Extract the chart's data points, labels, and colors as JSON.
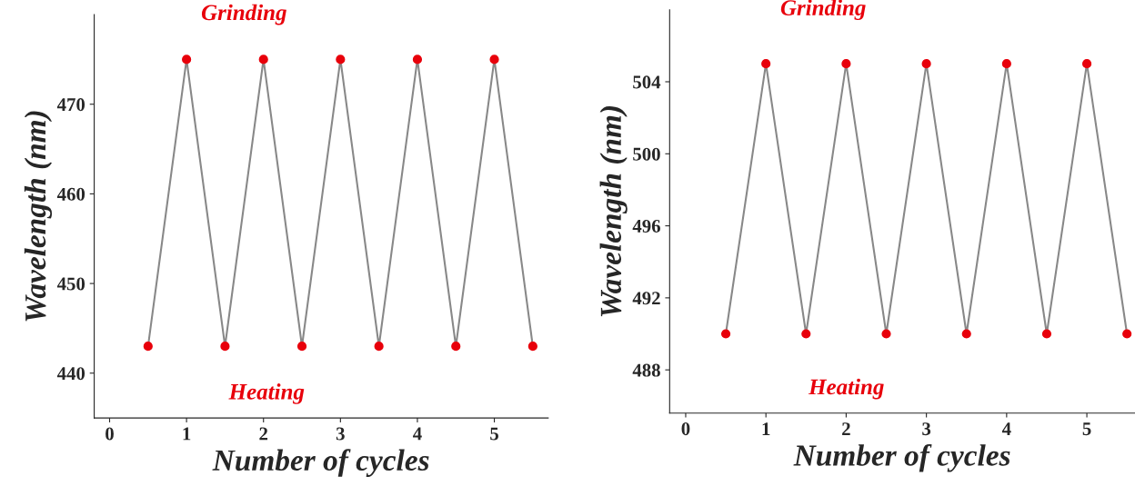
{
  "chart_data": [
    {
      "type": "line",
      "xlabel": "Number of cycles",
      "ylabel": "Wavelength (nm)",
      "x": [
        0.5,
        1,
        1.5,
        2,
        2.5,
        3,
        3.5,
        4,
        4.5,
        5,
        5.5
      ],
      "series": [
        {
          "color": "#e8000b",
          "values": [
            443,
            475,
            443,
            475,
            443,
            475,
            443,
            475,
            443,
            475,
            443
          ]
        }
      ],
      "marker": "circle",
      "xlim": [
        -0.2,
        5.7
      ],
      "xticks": [
        0,
        1,
        2,
        3,
        4,
        5
      ],
      "ylim": [
        435,
        480
      ],
      "yticks": [
        440,
        450,
        460,
        470
      ],
      "grid": false,
      "legend": false,
      "annotations": [
        "Grinding",
        "Heating"
      ]
    },
    {
      "type": "line",
      "xlabel": "Number of cycles",
      "ylabel": "Wavelength (nm)",
      "x": [
        0.5,
        1,
        1.5,
        2,
        2.5,
        3,
        3.5,
        4,
        4.5,
        5,
        5.5
      ],
      "series": [
        {
          "color": "#e8000b",
          "values": [
            490,
            505,
            490,
            505,
            490,
            505,
            490,
            505,
            490,
            505,
            490
          ]
        }
      ],
      "marker": "circle",
      "xlim": [
        -0.2,
        5.6
      ],
      "xticks": [
        0,
        1,
        2,
        3,
        4,
        5
      ],
      "ylim": [
        485.6,
        508
      ],
      "yticks": [
        488,
        492,
        496,
        500,
        504
      ],
      "grid": false,
      "legend": false,
      "annotations": [
        "Grinding",
        "Heating"
      ]
    }
  ]
}
